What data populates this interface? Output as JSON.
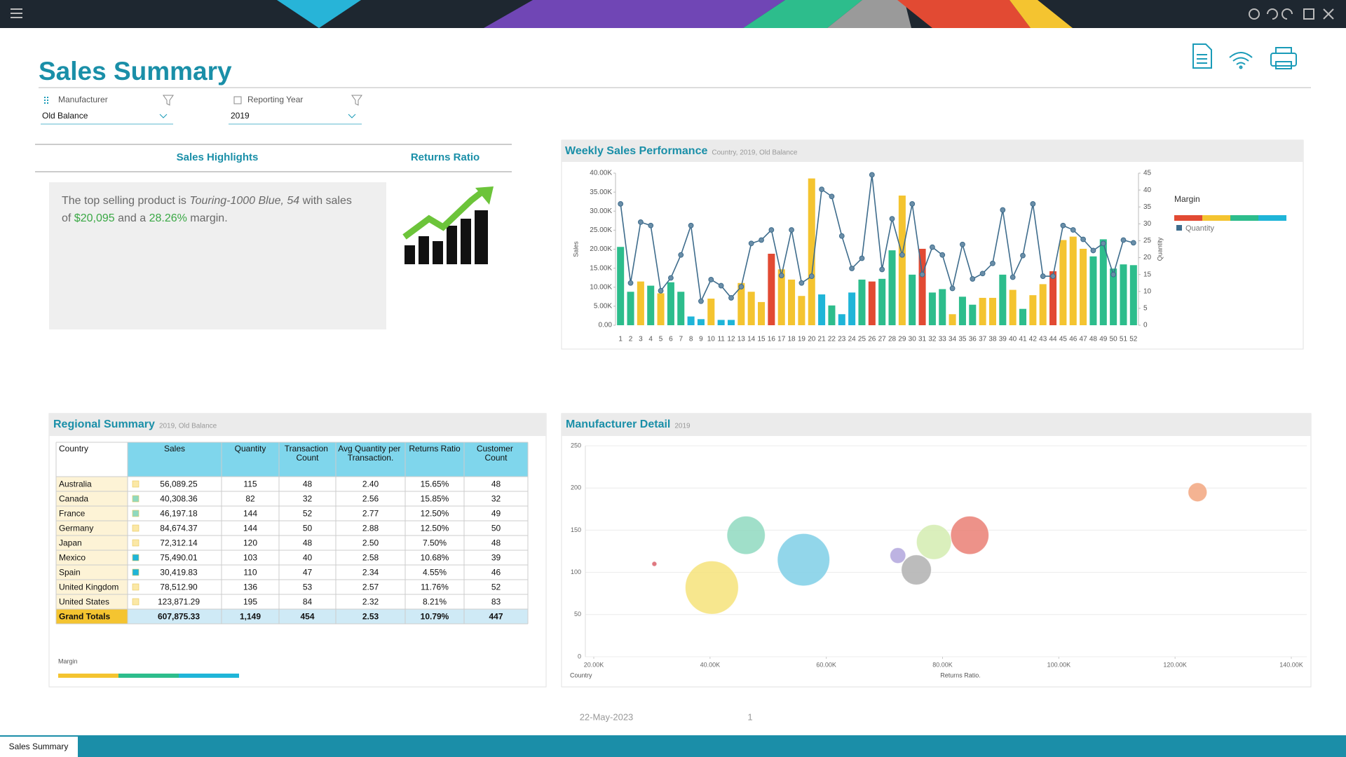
{
  "header": {
    "title": "Sales Summary"
  },
  "filters": [
    {
      "label": "Manufacturer",
      "value": "Old Balance"
    },
    {
      "label": "Reporting Year",
      "value": "2019"
    }
  ],
  "highlights": {
    "tabs": [
      "Sales Highlights",
      "Returns Ratio"
    ],
    "text": [
      "The top selling product is ",
      "Touring-1000 Blue, 54",
      " with sales of ",
      "$20,095",
      " and a ",
      "28.26%",
      " margin."
    ]
  },
  "regional": {
    "title": "Regional Summary",
    "subtitle": "2019, Old Balance",
    "columns": [
      "Country",
      "Sales",
      "Quantity",
      "Transaction Count",
      "Avg Quantity per Transaction.",
      "Returns Ratio",
      "Customer Count"
    ],
    "rows": [
      [
        "Australia",
        "56,089.25",
        "115",
        "48",
        "2.40",
        "15.65%",
        "48"
      ],
      [
        "Canada",
        "40,308.36",
        "82",
        "32",
        "2.56",
        "15.85%",
        "32"
      ],
      [
        "France",
        "46,197.18",
        "144",
        "52",
        "2.77",
        "12.50%",
        "49"
      ],
      [
        "Germany",
        "84,674.37",
        "144",
        "50",
        "2.88",
        "12.50%",
        "50"
      ],
      [
        "Japan",
        "72,312.14",
        "120",
        "48",
        "2.50",
        "7.50%",
        "48"
      ],
      [
        "Mexico",
        "75,490.01",
        "103",
        "40",
        "2.58",
        "10.68%",
        "39"
      ],
      [
        "Spain",
        "30,419.83",
        "110",
        "47",
        "2.34",
        "4.55%",
        "46"
      ],
      [
        "United Kingdom",
        "78,512.90",
        "136",
        "53",
        "2.57",
        "11.76%",
        "52"
      ],
      [
        "United States",
        "123,871.29",
        "195",
        "84",
        "2.32",
        "8.21%",
        "83"
      ]
    ],
    "totals": [
      "Grand Totals",
      "607,875.33",
      "1,149",
      "454",
      "2.53",
      "10.79%",
      "447"
    ],
    "margin_colors": [
      "#fbe8a6",
      "#8fd9bf",
      "#8fd9bf",
      "#fbe8a6",
      "#fbe8a6",
      "#1fb5d8",
      "#1fb5d8",
      "#fbe8a6",
      "#fbe8a6"
    ],
    "legend_title": "Margin",
    "legend_colors": [
      "#f4c430",
      "#2dbd8c",
      "#1fb5d8"
    ]
  },
  "footer": {
    "date": "22-May-2023",
    "page": "1",
    "tab": "Sales Summary"
  },
  "chart_data": [
    {
      "type": "combo",
      "title": "Weekly Sales Performance",
      "subtitle": "Country, 2019, Old Balance",
      "ylabel": "Sales",
      "y2label": "Quantity",
      "legend_title": "Margin",
      "legend_colors": [
        "#e24a33",
        "#f4c430",
        "#2dbd8c",
        "#1fb5d8"
      ],
      "categories": [
        "1",
        "2",
        "3",
        "4",
        "5",
        "6",
        "7",
        "8",
        "9",
        "10",
        "11",
        "12",
        "13",
        "14",
        "15",
        "16",
        "17",
        "18",
        "19",
        "20",
        "21",
        "22",
        "23",
        "24",
        "25",
        "26",
        "27",
        "28",
        "29",
        "30",
        "31",
        "32",
        "33",
        "34",
        "35",
        "36",
        "37",
        "38",
        "39",
        "40",
        "41",
        "42",
        "43",
        "44",
        "45",
        "46",
        "47",
        "48",
        "49",
        "50",
        "51",
        "52"
      ],
      "series": [
        {
          "name": "Margin",
          "values": [
            20600,
            8800,
            11500,
            10400,
            8400,
            11300,
            8800,
            2300,
            1600,
            7000,
            1400,
            1400,
            11100,
            8800,
            6100,
            18800,
            14700,
            12000,
            7700,
            38600,
            8100,
            5200,
            2900,
            8600,
            12000,
            11500,
            12200,
            19700,
            34100,
            13300,
            20100,
            8600,
            9500,
            2900,
            7500,
            5400,
            7200,
            7200,
            13300,
            9300,
            4300,
            7900,
            10800,
            14200,
            22400,
            23300,
            20100,
            18100,
            22600,
            14900,
            16000,
            15800
          ],
          "colors": [
            "#2dbd8c",
            "#2dbd8c",
            "#f4c430",
            "#2dbd8c",
            "#f4c430",
            "#2dbd8c",
            "#2dbd8c",
            "#1fb5d8",
            "#1fb5d8",
            "#f4c430",
            "#1fb5d8",
            "#1fb5d8",
            "#f4c430",
            "#f4c430",
            "#f4c430",
            "#e24a33",
            "#f4c430",
            "#f4c430",
            "#f4c430",
            "#f4c430",
            "#1fb5d8",
            "#2dbd8c",
            "#1fb5d8",
            "#1fb5d8",
            "#2dbd8c",
            "#e24a33",
            "#2dbd8c",
            "#2dbd8c",
            "#f4c430",
            "#2dbd8c",
            "#e24a33",
            "#2dbd8c",
            "#2dbd8c",
            "#f4c430",
            "#2dbd8c",
            "#2dbd8c",
            "#f4c430",
            "#f4c430",
            "#2dbd8c",
            "#f4c430",
            "#2dbd8c",
            "#f4c430",
            "#f4c430",
            "#e24a33",
            "#f4c430",
            "#f4c430",
            "#f4c430",
            "#2dbd8c",
            "#2dbd8c",
            "#2dbd8c",
            "#2dbd8c",
            "#2dbd8c"
          ]
        },
        {
          "name": "Quantity",
          "axis": "y2",
          "color": "#3e6c8c",
          "values": [
            35.9,
            12.5,
            30.5,
            29.5,
            10.2,
            14,
            20.8,
            29.5,
            7.1,
            13.5,
            11.7,
            8.1,
            11.4,
            24.2,
            25.2,
            28.2,
            14.7,
            28.2,
            12.5,
            14.5,
            40.2,
            38.1,
            26.4,
            16.8,
            19.8,
            44.5,
            16.5,
            31.5,
            20.8,
            35.9,
            15,
            23.1,
            20.8,
            10.9,
            23.9,
            13.7,
            15.3,
            18.3,
            34.1,
            14.2,
            20.6,
            35.9,
            14.5,
            14.5,
            29.5,
            28.2,
            25.4,
            22.1,
            24.2,
            15,
            25.2,
            24.4
          ]
        }
      ],
      "ylim": [
        0,
        40000
      ],
      "yticks": [
        {
          "value": 0,
          "label": "0.00"
        },
        {
          "value": 5000,
          "label": "5.00K"
        },
        {
          "value": 10000,
          "label": "10.00K"
        },
        {
          "value": 15000,
          "label": "15.00K"
        },
        {
          "value": 20000,
          "label": "20.00K"
        },
        {
          "value": 25000,
          "label": "25.00K"
        },
        {
          "value": 30000,
          "label": "30.00K"
        },
        {
          "value": 35000,
          "label": "35.00K"
        },
        {
          "value": 40000,
          "label": "40.00K"
        }
      ],
      "y2lim": [
        0,
        45
      ],
      "y2ticks": [
        0,
        5,
        10,
        15,
        20,
        25,
        30,
        35,
        40,
        45
      ]
    },
    {
      "type": "bubble",
      "title": "Manufacturer Detail",
      "subtitle": "2019",
      "legend_title": "Country",
      "xlabel": "Returns Ratio.",
      "x": [
        56089.25,
        40308.36,
        46197.18,
        84674.37,
        72312.14,
        75490.01,
        30419.83,
        78512.9,
        123871.29
      ],
      "values": [
        115,
        82,
        144,
        144,
        120,
        103,
        110,
        136,
        195
      ],
      "sizes": [
        15.65,
        15.85,
        12.5,
        12.5,
        7.5,
        10.68,
        4.55,
        11.76,
        8.21
      ],
      "colors": [
        "#7fcfe6",
        "#f6e37a",
        "#8fd9bf",
        "#ea7f74",
        "#b2a6dd",
        "#b0b0b0",
        "#d9606a",
        "#d4ecb0",
        "#f2a67f"
      ],
      "xlim": [
        20000,
        140000
      ],
      "xticks": [
        {
          "value": 20000,
          "label": "20.00K"
        },
        {
          "value": 40000,
          "label": "40.00K"
        },
        {
          "value": 60000,
          "label": "60.00K"
        },
        {
          "value": 80000,
          "label": "80.00K"
        },
        {
          "value": 100000,
          "label": "100.00K"
        },
        {
          "value": 120000,
          "label": "120.00K"
        },
        {
          "value": 140000,
          "label": "140.00K"
        }
      ],
      "ylim": [
        0,
        250
      ],
      "yticks": [
        0,
        50,
        100,
        150,
        200,
        250
      ],
      "grid": true
    }
  ]
}
